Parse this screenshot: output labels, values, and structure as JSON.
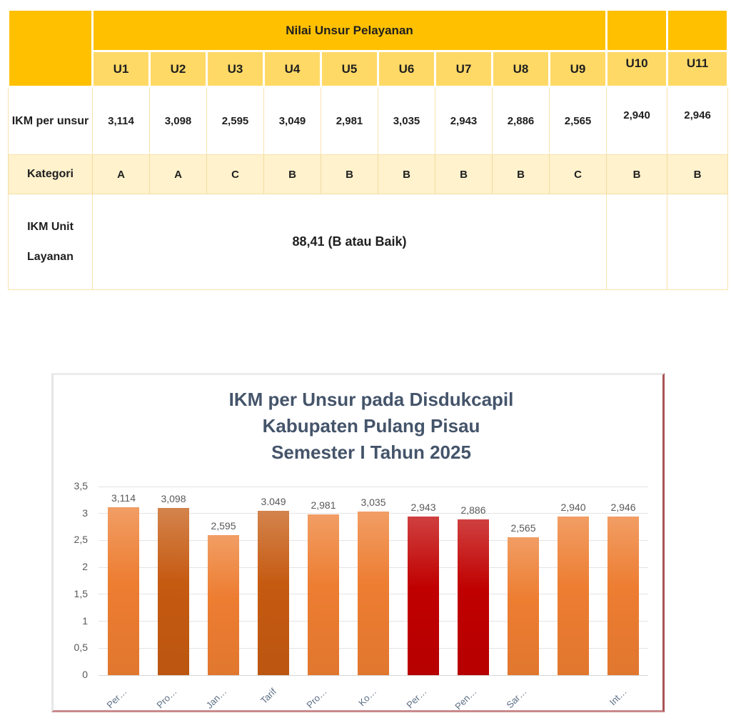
{
  "table": {
    "group_header": "Nilai Unsur Pelayanan",
    "columns": [
      "U1",
      "U2",
      "U3",
      "U4",
      "U5",
      "U6",
      "U7",
      "U8",
      "U9",
      "U10",
      "U11"
    ],
    "ikm_row": {
      "label": "IKM per unsur",
      "values": [
        "3,114",
        "3,098",
        "2,595",
        "3,049",
        "2,981",
        "3,035",
        "2,943",
        "2,886",
        "2,565",
        "2,940",
        "2,946"
      ]
    },
    "kategori_row": {
      "label": "Kategori",
      "values": [
        "A",
        "A",
        "C",
        "B",
        "B",
        "B",
        "B",
        "B",
        "C",
        "B",
        "B"
      ]
    },
    "unit_row": {
      "label": "IKM Unit Layanan",
      "value": "88,41 (B atau Baik)"
    },
    "colors": {
      "header_gold": "#FFC000",
      "subheader_gold": "#FFD966",
      "kategori_cream": "#FFF2CC",
      "cell_border": "#F7E2AC",
      "text": "#1F1F1F"
    }
  },
  "chart_data": {
    "type": "bar",
    "title": "IKM per Unsur pada Disdukcapil Kabupaten Pulang Pisau Semester I Tahun 2025",
    "title_lines": [
      "IKM per Unsur pada Disdukcapil",
      "Kabupaten Pulang Pisau",
      "Semester I Tahun 2025"
    ],
    "categories": [
      "Per…",
      "Pro…",
      "Jan…",
      "Tarif",
      "Pro…",
      "Ko…",
      "Per…",
      "Pen…",
      "Sar…",
      "",
      "Int…"
    ],
    "values": [
      3.114,
      3.098,
      2.595,
      3.049,
      2.981,
      3.035,
      2.943,
      2.886,
      2.565,
      2.94,
      2.946
    ],
    "data_labels": [
      "3,114",
      "3,098",
      "2,595",
      "3.049",
      "2,981",
      "3,035",
      "2,943",
      "2,886",
      "2,565",
      "2,940",
      "2,946"
    ],
    "bar_colors": [
      "#ED7D31",
      "#C55A11",
      "#ED7D31",
      "#C55A11",
      "#ED7D31",
      "#ED7D31",
      "#C00000",
      "#C00000",
      "#ED7D31",
      "#ED7D31",
      "#ED7D31"
    ],
    "ytick_values": [
      0,
      0.5,
      1,
      1.5,
      2,
      2.5,
      3,
      3.5
    ],
    "ytick_labels": [
      "0",
      "0,5",
      "1",
      "1,5",
      "2",
      "2,5",
      "3",
      "3,5"
    ],
    "ylim": [
      0,
      3.5
    ],
    "grid": true,
    "legend": false,
    "xlabel": "",
    "ylabel": "",
    "colors": {
      "title": "#44546A",
      "data_label": "#595959",
      "axis_tick_label": "#595959",
      "category_label": "#5C6E84",
      "gridline": "#E4E4E4",
      "orange": "#ED7D31",
      "dark_orange": "#C55A11",
      "red": "#C00000"
    }
  }
}
